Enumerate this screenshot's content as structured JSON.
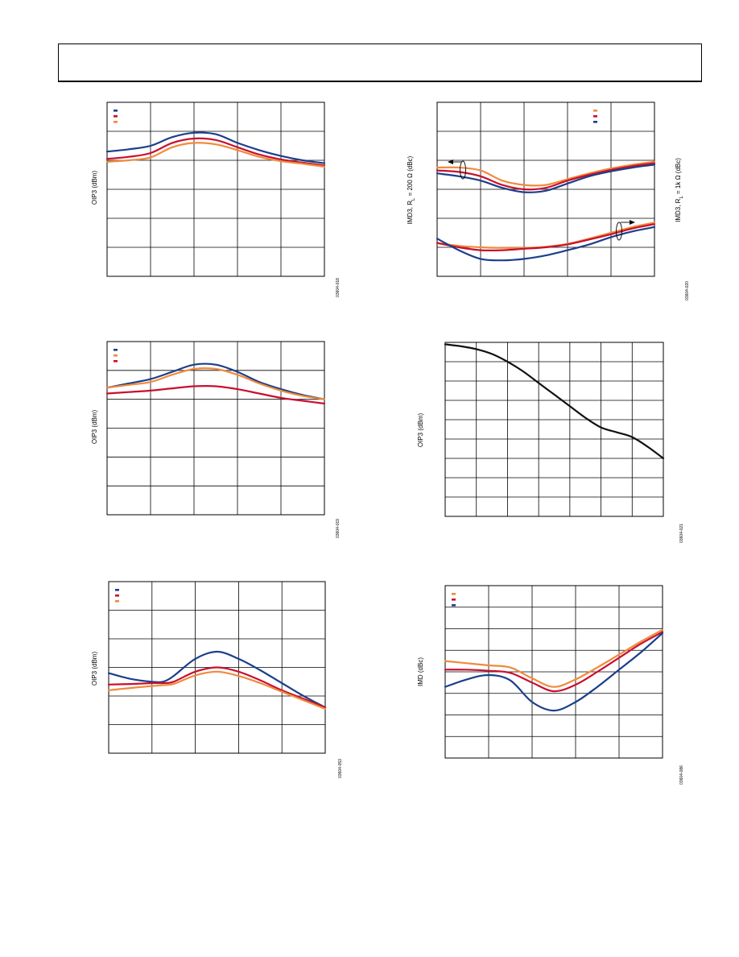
{
  "colors": {
    "orange": "#f08a3c",
    "red": "#c8102e",
    "blue": "#1b3f8b",
    "black": "#111111"
  },
  "chart_data": [
    {
      "id": "c1",
      "type": "line",
      "ylabel": "OIP3 (dBm)",
      "code": "03604-018",
      "xlim": [
        0,
        5
      ],
      "ylim": [
        0,
        6
      ],
      "xdivs": 5,
      "ydivs": 6,
      "legend_position": "top-left",
      "series": [
        {
          "color": "blue",
          "x": [
            0,
            0.5,
            1,
            1.5,
            2,
            2.5,
            3,
            3.5,
            4,
            4.5,
            5
          ],
          "y": [
            4.3,
            4.38,
            4.5,
            4.8,
            4.95,
            4.9,
            4.6,
            4.35,
            4.15,
            4.0,
            3.9
          ]
        },
        {
          "color": "red",
          "x": [
            0,
            0.5,
            1,
            1.5,
            2,
            2.5,
            3,
            3.5,
            4,
            4.5,
            5
          ],
          "y": [
            4.05,
            4.12,
            4.25,
            4.6,
            4.75,
            4.7,
            4.45,
            4.2,
            4.03,
            3.92,
            3.82
          ]
        },
        {
          "color": "orange",
          "x": [
            0,
            0.5,
            1,
            1.5,
            2,
            2.5,
            3,
            3.5,
            4,
            4.5,
            5
          ],
          "y": [
            3.95,
            4.0,
            4.1,
            4.45,
            4.6,
            4.55,
            4.35,
            4.12,
            3.97,
            3.88,
            3.78
          ]
        }
      ]
    },
    {
      "id": "c2",
      "type": "line",
      "ylabel": "IMD3, R",
      "ylabel_sub": "L",
      "ylabel_rest": " = 200 Ω (dBc)",
      "ylabel_right": "IMD3, R",
      "ylabel_right_sub": "L",
      "ylabel_right_rest": " = 1k Ω (dBc)",
      "code": "03604-020",
      "xlim": [
        0,
        5
      ],
      "ylim": [
        0,
        6
      ],
      "xdivs": 5,
      "ydivs": 6,
      "legend_position": "top-right",
      "series": [
        {
          "color": "orange",
          "x": [
            0,
            0.5,
            1,
            1.5,
            2,
            2.5,
            3,
            3.5,
            4,
            4.5,
            5
          ],
          "y": [
            3.75,
            3.75,
            3.65,
            3.3,
            3.15,
            3.15,
            3.35,
            3.55,
            3.72,
            3.85,
            3.95
          ]
        },
        {
          "color": "red",
          "x": [
            0,
            0.5,
            1,
            1.5,
            2,
            2.5,
            3,
            3.5,
            4,
            4.5,
            5
          ],
          "y": [
            3.65,
            3.6,
            3.45,
            3.15,
            3.0,
            3.05,
            3.3,
            3.5,
            3.67,
            3.8,
            3.9
          ]
        },
        {
          "color": "blue",
          "x": [
            0,
            0.5,
            1,
            1.5,
            2,
            2.5,
            3,
            3.5,
            4,
            4.5,
            5
          ],
          "y": [
            3.55,
            3.45,
            3.3,
            3.05,
            2.9,
            2.95,
            3.2,
            3.45,
            3.62,
            3.75,
            3.85
          ]
        },
        {
          "color": "orange",
          "x": [
            0,
            0.5,
            1,
            1.5,
            2,
            2.5,
            3,
            3.5,
            4,
            4.5,
            5
          ],
          "y": [
            1.15,
            1.05,
            1.0,
            0.98,
            0.98,
            1.02,
            1.12,
            1.3,
            1.5,
            1.7,
            1.85
          ]
        },
        {
          "color": "red",
          "x": [
            0,
            0.5,
            1,
            1.5,
            2,
            2.5,
            3,
            3.5,
            4,
            4.5,
            5
          ],
          "y": [
            1.15,
            1.0,
            0.9,
            0.9,
            0.95,
            1.0,
            1.1,
            1.27,
            1.45,
            1.65,
            1.8
          ]
        },
        {
          "color": "blue",
          "x": [
            0,
            0.5,
            1,
            1.5,
            2,
            2.5,
            3,
            3.5,
            4,
            4.5,
            5
          ],
          "y": [
            1.3,
            0.9,
            0.6,
            0.55,
            0.6,
            0.72,
            0.9,
            1.1,
            1.35,
            1.55,
            1.7
          ]
        }
      ]
    },
    {
      "id": "c3",
      "type": "line",
      "ylabel": "OIP3 (dBm)",
      "code": "03604-019",
      "xlim": [
        0,
        5
      ],
      "ylim": [
        0,
        6
      ],
      "xdivs": 5,
      "ydivs": 6,
      "legend_position": "top-left",
      "series": [
        {
          "color": "blue",
          "x": [
            0,
            0.5,
            1,
            1.5,
            2,
            2.5,
            3,
            3.5,
            4,
            4.5,
            5
          ],
          "y": [
            4.4,
            4.55,
            4.7,
            4.95,
            5.2,
            5.2,
            4.95,
            4.6,
            4.35,
            4.15,
            4.0
          ]
        },
        {
          "color": "orange",
          "x": [
            0,
            0.5,
            1,
            1.5,
            2,
            2.5,
            3,
            3.5,
            4,
            4.5,
            5
          ],
          "y": [
            4.4,
            4.5,
            4.6,
            4.85,
            5.05,
            5.05,
            4.85,
            4.55,
            4.3,
            4.12,
            4.0
          ]
        },
        {
          "color": "red",
          "x": [
            0,
            0.5,
            1,
            1.5,
            2,
            2.5,
            3,
            3.5,
            4,
            4.5,
            5
          ],
          "y": [
            4.2,
            4.25,
            4.3,
            4.38,
            4.45,
            4.45,
            4.35,
            4.2,
            4.05,
            3.95,
            3.85
          ]
        }
      ]
    },
    {
      "id": "c4",
      "type": "line",
      "ylabel": "OIP3 (dBm)",
      "code": "03604-021",
      "xlim": [
        0,
        7
      ],
      "ylim": [
        0,
        9
      ],
      "xdivs": 7,
      "ydivs": 9,
      "series": [
        {
          "color": "black",
          "x": [
            0,
            0.5,
            1,
            1.5,
            2,
            2.5,
            3,
            3.5,
            4,
            4.5,
            5,
            5.5,
            6,
            6.5,
            7
          ],
          "y": [
            8.9,
            8.8,
            8.65,
            8.4,
            8.0,
            7.5,
            6.9,
            6.3,
            5.7,
            5.1,
            4.6,
            4.35,
            4.1,
            3.6,
            3.0
          ]
        }
      ]
    },
    {
      "id": "c5",
      "type": "line",
      "ylabel": "OIP3 (dBm)",
      "code": "03604-053",
      "xlim": [
        0,
        5
      ],
      "ylim": [
        0,
        6
      ],
      "xdivs": 5,
      "ydivs": 6,
      "legend_position": "top-left",
      "series": [
        {
          "color": "blue",
          "x": [
            0,
            0.5,
            1,
            1.25,
            1.5,
            2,
            2.5,
            3,
            3.5,
            4,
            4.5,
            5
          ],
          "y": [
            2.8,
            2.6,
            2.5,
            2.5,
            2.7,
            3.3,
            3.55,
            3.3,
            2.9,
            2.45,
            2.0,
            1.6
          ]
        },
        {
          "color": "red",
          "x": [
            0,
            0.5,
            1,
            1.25,
            1.5,
            2,
            2.5,
            3,
            3.5,
            4,
            4.5,
            5
          ],
          "y": [
            2.4,
            2.42,
            2.45,
            2.45,
            2.5,
            2.85,
            3.0,
            2.85,
            2.55,
            2.2,
            1.9,
            1.6
          ]
        },
        {
          "color": "orange",
          "x": [
            0,
            0.5,
            1,
            1.25,
            1.5,
            2,
            2.5,
            3,
            3.5,
            4,
            4.5,
            5
          ],
          "y": [
            2.2,
            2.28,
            2.35,
            2.38,
            2.42,
            2.72,
            2.85,
            2.7,
            2.45,
            2.15,
            1.85,
            1.55
          ]
        }
      ]
    },
    {
      "id": "c6",
      "type": "line",
      "ylabel": "IMD (dBc)",
      "code": "03604-086",
      "xlim": [
        0,
        5
      ],
      "ylim": [
        0,
        8
      ],
      "xdivs": 5,
      "ydivs": 8,
      "legend_position": "top-left",
      "series": [
        {
          "color": "orange",
          "x": [
            0,
            0.5,
            1,
            1.5,
            2,
            2.5,
            3,
            3.5,
            4,
            4.5,
            5
          ],
          "y": [
            4.5,
            4.4,
            4.3,
            4.2,
            3.7,
            3.3,
            3.65,
            4.2,
            4.8,
            5.4,
            5.95
          ]
        },
        {
          "color": "red",
          "x": [
            0,
            0.5,
            1,
            1.5,
            2,
            2.5,
            3,
            3.5,
            4,
            4.5,
            5
          ],
          "y": [
            4.1,
            4.1,
            4.05,
            3.95,
            3.5,
            3.1,
            3.4,
            4.0,
            4.65,
            5.3,
            5.85
          ]
        },
        {
          "color": "blue",
          "x": [
            0,
            0.5,
            1,
            1.5,
            2,
            2.5,
            3,
            3.5,
            4,
            4.5,
            5
          ],
          "y": [
            3.3,
            3.65,
            3.85,
            3.6,
            2.6,
            2.2,
            2.6,
            3.3,
            4.1,
            4.9,
            5.8
          ]
        }
      ]
    }
  ]
}
